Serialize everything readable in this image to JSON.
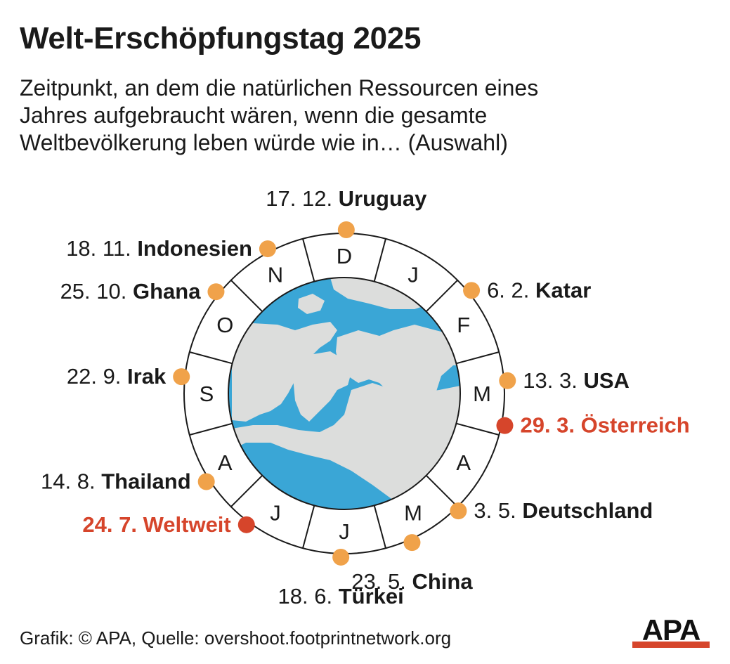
{
  "title": "Welt-Erschöpfungstag 2025",
  "subtitle_lines": [
    "Zeitpunkt, an dem die natürlichen Ressourcen eines",
    "Jahres aufgebraucht wären, wenn die gesamte",
    "Weltbevölkerung leben würde wie in… (Auswahl)"
  ],
  "months": [
    "J",
    "F",
    "M",
    "A",
    "M",
    "J",
    "J",
    "A",
    "S",
    "O",
    "N",
    "D"
  ],
  "colors": {
    "country_dot": "#f0a24a",
    "highlight": "#d6452b",
    "ocean": "#3aa6d6",
    "land": "#dcdddc",
    "ring_line": "#1a1a1a"
  },
  "entries": [
    {
      "date": "6. 2.",
      "name": "Katar",
      "month": 2,
      "day": 6,
      "highlight": false
    },
    {
      "date": "13. 3.",
      "name": "USA",
      "month": 3,
      "day": 13,
      "highlight": false
    },
    {
      "date": "29. 3.",
      "name": "Österreich",
      "month": 3,
      "day": 29,
      "highlight": true
    },
    {
      "date": "3. 5.",
      "name": "Deutschland",
      "month": 5,
      "day": 3,
      "highlight": false
    },
    {
      "date": "23. 5.",
      "name": "China",
      "month": 5,
      "day": 23,
      "highlight": false
    },
    {
      "date": "18. 6.",
      "name": "Türkei",
      "month": 6,
      "day": 18,
      "highlight": false
    },
    {
      "date": "24. 7.",
      "name": "Weltweit",
      "month": 7,
      "day": 24,
      "highlight": true
    },
    {
      "date": "14. 8.",
      "name": "Thailand",
      "month": 8,
      "day": 14,
      "highlight": false
    },
    {
      "date": "22. 9.",
      "name": "Irak",
      "month": 9,
      "day": 22,
      "highlight": false
    },
    {
      "date": "25. 10.",
      "name": "Ghana",
      "month": 10,
      "day": 25,
      "highlight": false
    },
    {
      "date": "18. 11.",
      "name": "Indonesien",
      "month": 11,
      "day": 18,
      "highlight": false
    },
    {
      "date": "17. 12.",
      "name": "Uruguay",
      "month": 12,
      "day": 17,
      "highlight": false
    }
  ],
  "footer": {
    "source": "Grafik: © APA, Quelle: overshoot.footprintnetwork.org"
  },
  "logo_text": "APA"
}
